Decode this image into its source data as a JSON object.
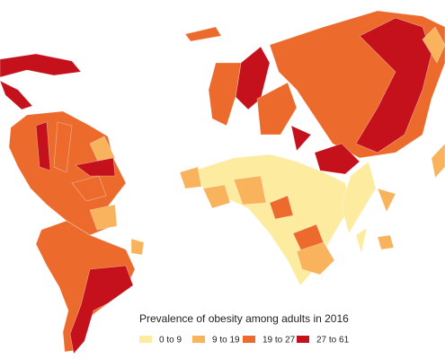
{
  "legend": {
    "title": "Prevalence of obesity among adults in 2016",
    "items": [
      {
        "label": "0 to 9",
        "color": "#fdeba0"
      },
      {
        "label": "9 to 19",
        "color": "#f8b35c"
      },
      {
        "label": "19 to 27",
        "color": "#ec6a2c"
      },
      {
        "label": "27 to 61",
        "color": "#c4111b"
      }
    ]
  }
}
